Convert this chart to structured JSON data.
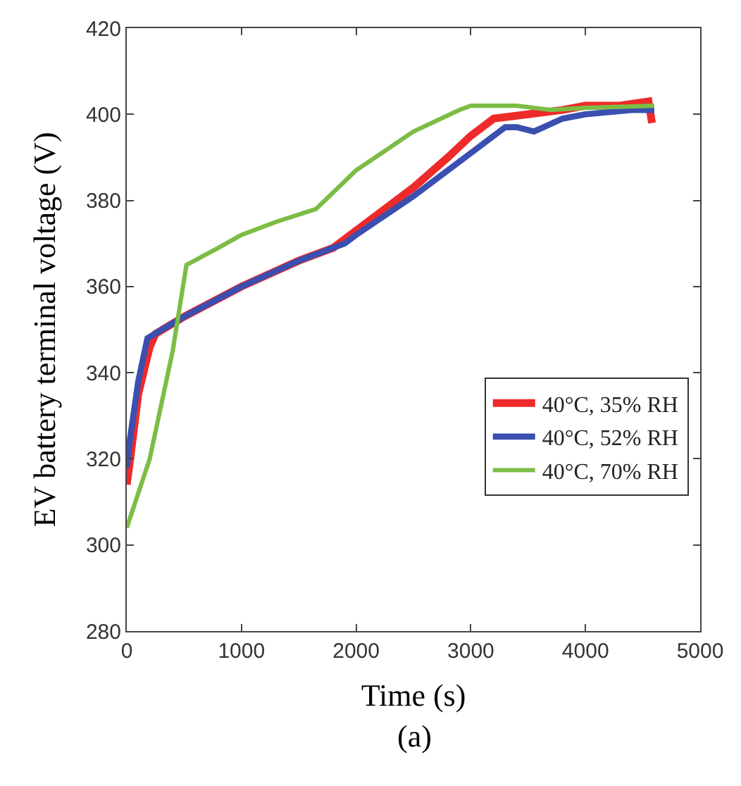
{
  "chart_data": {
    "type": "line",
    "xlabel": "Time (s)",
    "ylabel": "EV battery terminal voltage (V)",
    "annotations": [
      "(a)"
    ],
    "xlim": [
      0,
      5000
    ],
    "xticks": [
      0,
      1000,
      2000,
      3000,
      4000,
      5000
    ],
    "ylim": [
      280,
      420
    ],
    "yticks": [
      280,
      300,
      320,
      340,
      360,
      380,
      400,
      420
    ],
    "legend": "bottom right",
    "line_style": "solid",
    "marker": "none",
    "series": [
      {
        "name": "40°C, 35% RH",
        "color": "#ee2a2a",
        "x": [
          0,
          30,
          100,
          200,
          250,
          500,
          1000,
          1500,
          1800,
          2000,
          2500,
          2800,
          3000,
          3200,
          3500,
          3800,
          4000,
          4300,
          4550,
          4580
        ],
        "values": [
          314,
          320,
          335,
          346,
          349,
          353,
          360,
          366,
          369,
          373,
          383,
          390,
          395,
          399,
          400,
          401,
          402,
          402,
          403,
          398
        ]
      },
      {
        "name": "40°C, 52% RH",
        "color": "#3a4fb0",
        "x": [
          0,
          30,
          100,
          180,
          500,
          1000,
          1500,
          1900,
          2000,
          2500,
          3000,
          3300,
          3400,
          3550,
          3800,
          4000,
          4400,
          4600
        ],
        "values": [
          318,
          325,
          338,
          348,
          353,
          360,
          366,
          370,
          372,
          381,
          391,
          397,
          397,
          396,
          399,
          400,
          401,
          401
        ]
      },
      {
        "name": "40°C, 70% RH",
        "color": "#7cbd45",
        "x": [
          0,
          200,
          400,
          520,
          800,
          1000,
          1300,
          1650,
          2000,
          2500,
          2900,
          3000,
          3400,
          3700,
          4000,
          4600
        ],
        "values": [
          304,
          320,
          345,
          365,
          369,
          372,
          375,
          378,
          387,
          396,
          401,
          402,
          402,
          401,
          401.5,
          402
        ]
      }
    ]
  }
}
